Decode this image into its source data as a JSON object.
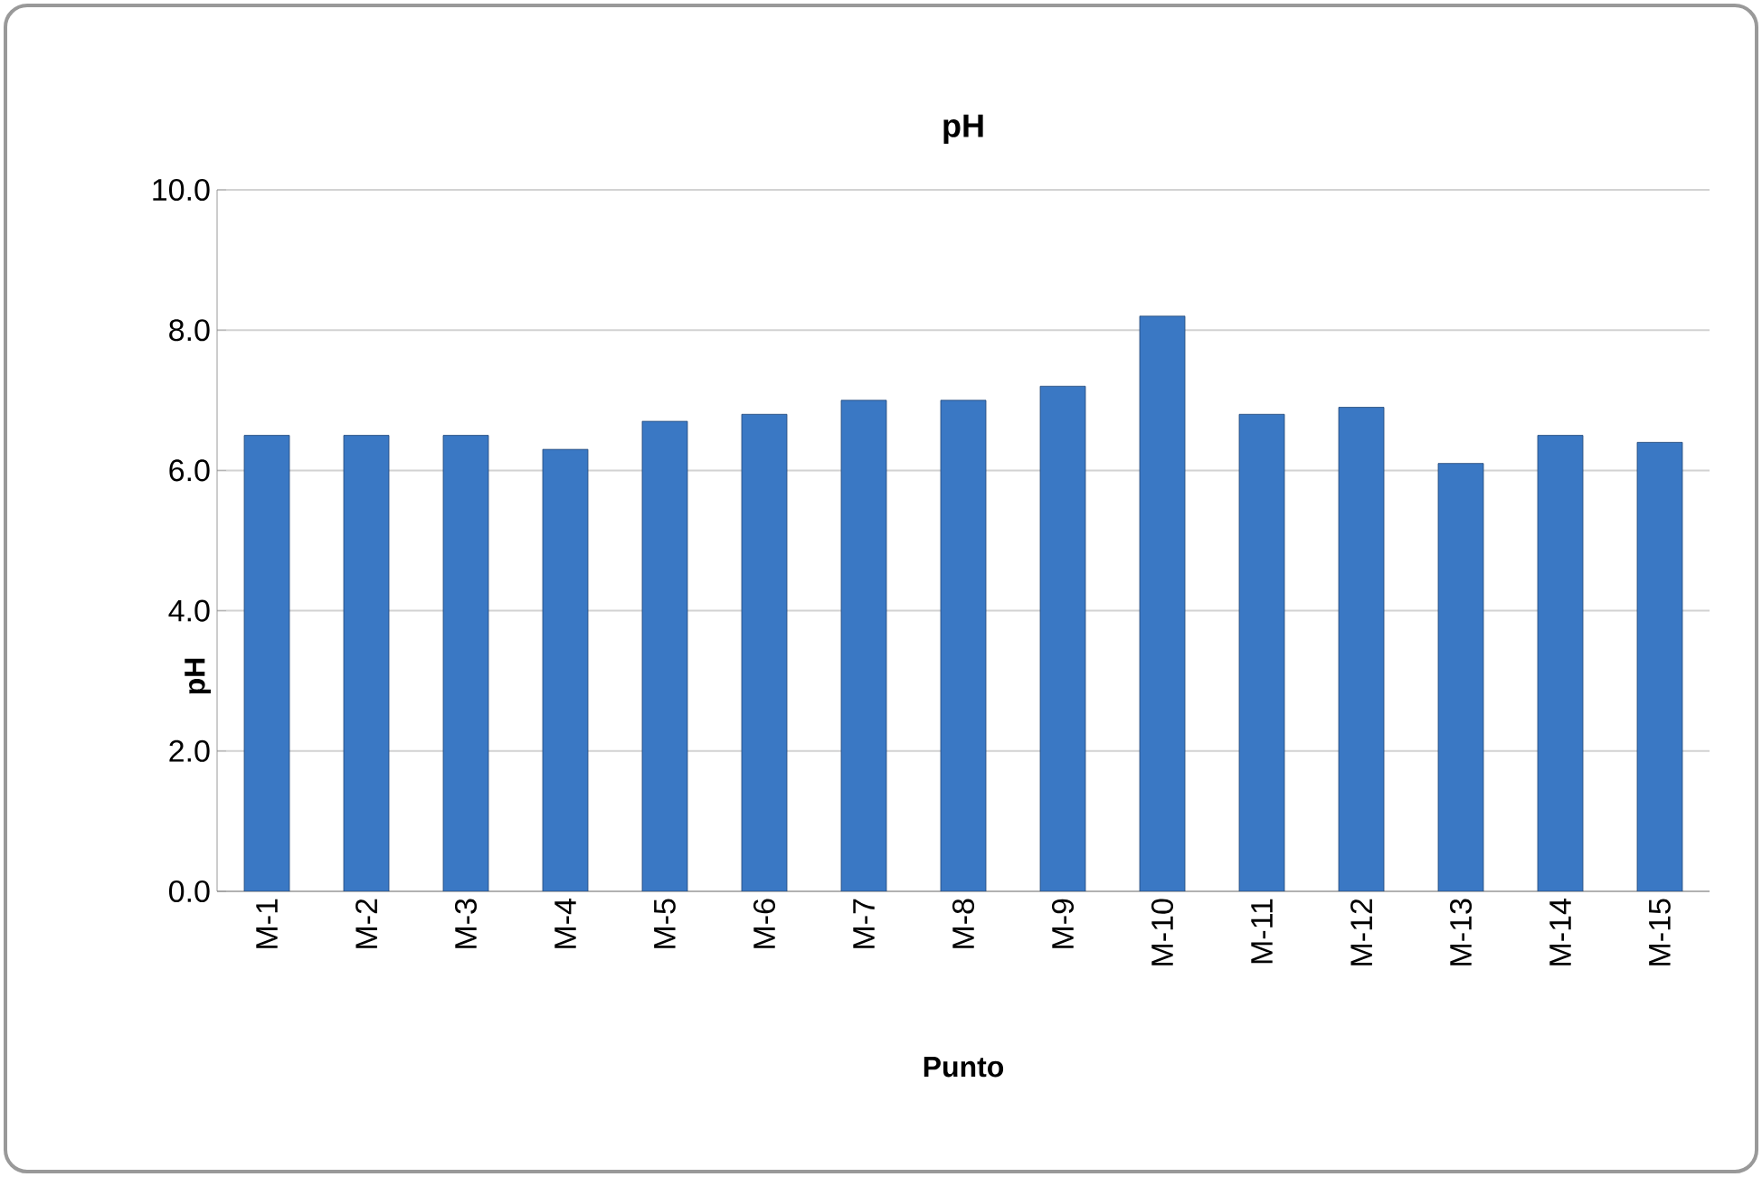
{
  "chart_data": {
    "type": "bar",
    "title": "pH",
    "xlabel": "Punto",
    "ylabel": "pH",
    "categories": [
      "M-1",
      "M-2",
      "M-3",
      "M-4",
      "M-5",
      "M-6",
      "M-7",
      "M-8",
      "M-9",
      "M-10",
      "M-11",
      "M-12",
      "M-13",
      "M-14",
      "M-15"
    ],
    "values": [
      6.5,
      6.5,
      6.5,
      6.3,
      6.7,
      6.8,
      7.0,
      7.0,
      7.2,
      8.2,
      6.8,
      6.9,
      6.1,
      6.5,
      6.4
    ],
    "color": "#3a78c4",
    "ylim": [
      0,
      10
    ],
    "yticks": [
      {
        "value": 0,
        "label": "0.0"
      },
      {
        "value": 2,
        "label": "2.0"
      },
      {
        "value": 4,
        "label": "4.0"
      },
      {
        "value": 6,
        "label": "6.0"
      },
      {
        "value": 8,
        "label": "8.0"
      },
      {
        "value": 10,
        "label": "10.0"
      }
    ],
    "grid": "y"
  }
}
